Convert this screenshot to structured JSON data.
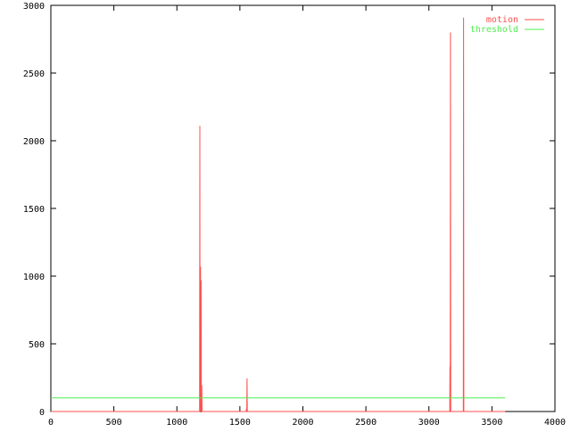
{
  "chart_data": {
    "type": "line",
    "title": "",
    "xlabel": "",
    "ylabel": "",
    "xlim": [
      0,
      4000
    ],
    "ylim": [
      0,
      3000
    ],
    "xticks": [
      0,
      500,
      1000,
      1500,
      2000,
      2500,
      3000,
      3500,
      4000
    ],
    "yticks": [
      0,
      500,
      1000,
      1500,
      2000,
      2500,
      3000
    ],
    "grid": false,
    "legend_position": "top-right",
    "series": [
      {
        "name": "motion",
        "color": "#ff4f4f",
        "points": [
          [
            0,
            0
          ],
          [
            1180,
            0
          ],
          [
            1182,
            2110
          ],
          [
            1184,
            0
          ],
          [
            1188,
            1070
          ],
          [
            1190,
            0
          ],
          [
            1192,
            970
          ],
          [
            1194,
            0
          ],
          [
            1196,
            190
          ],
          [
            1198,
            190
          ],
          [
            1200,
            0
          ],
          [
            1550,
            0
          ],
          [
            1552,
            20
          ],
          [
            1555,
            0
          ],
          [
            1557,
            245
          ],
          [
            1559,
            0
          ],
          [
            3165,
            0
          ],
          [
            3167,
            330
          ],
          [
            3169,
            0
          ],
          [
            3171,
            2800
          ],
          [
            3173,
            0
          ],
          [
            3273,
            0
          ],
          [
            3275,
            2910
          ],
          [
            3277,
            0
          ],
          [
            3605,
            0
          ]
        ]
      },
      {
        "name": "threshold",
        "color": "#4fef4f",
        "points": [
          [
            0,
            100
          ],
          [
            3605,
            100
          ]
        ]
      }
    ]
  }
}
